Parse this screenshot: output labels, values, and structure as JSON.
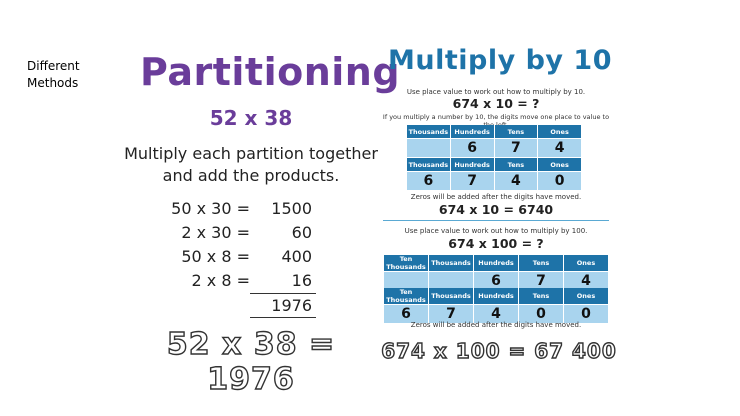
{
  "corner_label": "Different Methods",
  "partitioning": {
    "title": "Partitioning",
    "subtitle": "52 x 38",
    "instruction_line1": "Multiply each partition together",
    "instruction_line2": "and add the products.",
    "rows": [
      {
        "left": "50 x 30 =",
        "right": "1500"
      },
      {
        "left": "2 x 30 =",
        "right": "60"
      },
      {
        "left": "50 x 8 =",
        "right": "400"
      },
      {
        "left": "2 x 8 =",
        "right": "16"
      }
    ],
    "total": "1976",
    "result": "52 x 38 = 1976"
  },
  "multiply": {
    "title": "Multiply by 10",
    "section1": {
      "instruction": "Use place value to work out how to multiply by 10.",
      "question": "674 x 10 = ?",
      "note": "If you multiply a number by 10, the digits move one place to value to the left.",
      "headers": [
        "Thousands",
        "Hundreds",
        "Tens",
        "Ones"
      ],
      "row1": [
        "",
        "6",
        "7",
        "4"
      ],
      "row2": [
        "6",
        "7",
        "4",
        "0"
      ],
      "zeros_note": "Zeros will be added after the digits have moved.",
      "answer": "674 x 10 = 6740"
    },
    "section2": {
      "instruction": "Use place value to work out how to multiply by 100.",
      "question": "674 x 100 = ?",
      "headers": [
        "Ten Thousands",
        "Thousands",
        "Hundreds",
        "Tens",
        "Ones"
      ],
      "row1": [
        "",
        "",
        "6",
        "7",
        "4"
      ],
      "row2": [
        "6",
        "7",
        "4",
        "0",
        "0"
      ],
      "zeros_note": "Zeros will be added after the digits have moved."
    },
    "result": "674 x 100 = 67 400"
  }
}
